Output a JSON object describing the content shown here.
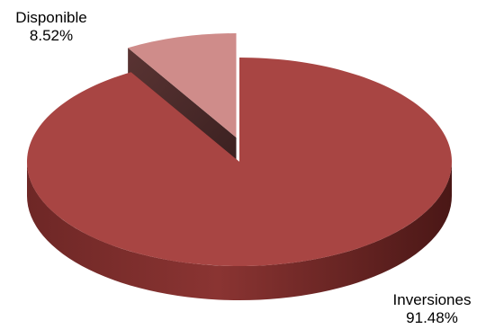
{
  "chart_data": {
    "type": "pie",
    "style": "3d-exploded",
    "slices": [
      {
        "label": "Inversiones",
        "value": 91.48,
        "value_label": "91.48%",
        "color": "#a84543"
      },
      {
        "label": "Disponible",
        "value": 8.52,
        "value_label": "8.52%",
        "color": "#cf8c8a"
      }
    ],
    "exploded_slice": "Disponible",
    "legend": "none"
  }
}
